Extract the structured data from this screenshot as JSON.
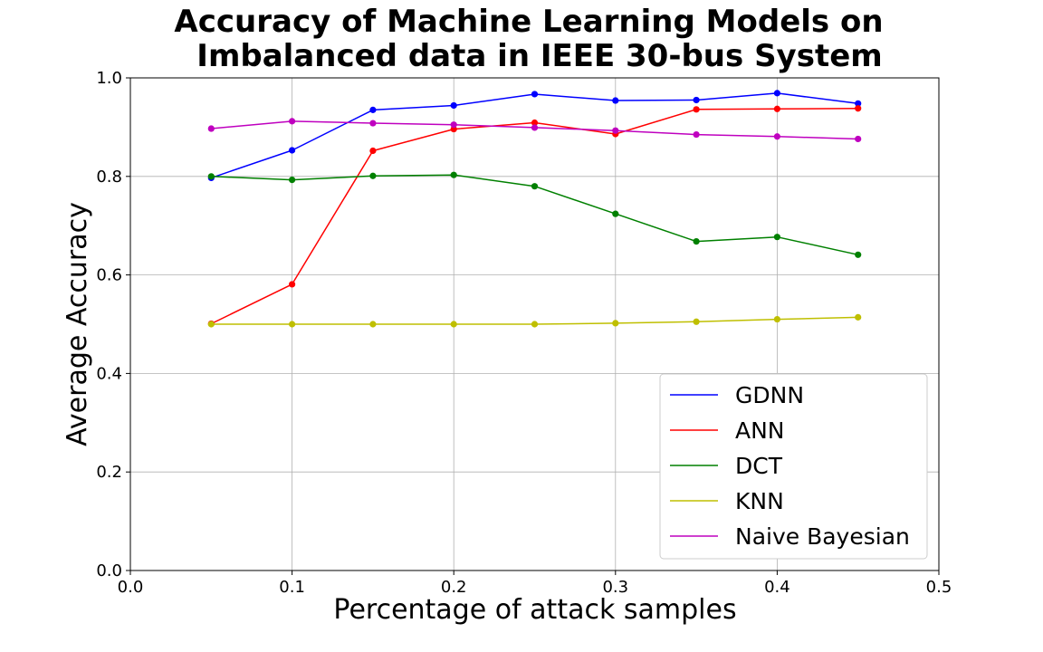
{
  "chart_data": {
    "type": "line",
    "title_lines": [
      "Accuracy of Machine Learning Models on",
      "Imbalanced data in IEEE 30-bus System"
    ],
    "xlabel": "Percentage of attack samples",
    "ylabel": "Average Accuracy",
    "xlim": [
      0.0,
      0.5
    ],
    "ylim": [
      0.0,
      1.0
    ],
    "xticks": [
      0.0,
      0.1,
      0.2,
      0.3,
      0.4,
      0.5
    ],
    "xtick_labels": [
      "0.0",
      "0.1",
      "0.2",
      "0.3",
      "0.4",
      "0.5"
    ],
    "yticks": [
      0.0,
      0.2,
      0.4,
      0.6,
      0.8,
      1.0
    ],
    "ytick_labels": [
      "0.0",
      "0.2",
      "0.4",
      "0.6",
      "0.8",
      "1.0"
    ],
    "grid": true,
    "legend_position": "lower-right",
    "x": [
      0.05,
      0.1,
      0.15,
      0.2,
      0.25,
      0.3,
      0.35,
      0.4,
      0.45
    ],
    "series": [
      {
        "name": "GDNN",
        "color": "#0000ff",
        "values": [
          0.797,
          0.853,
          0.935,
          0.944,
          0.967,
          0.954,
          0.955,
          0.969,
          0.948
        ]
      },
      {
        "name": "ANN",
        "color": "#ff0000",
        "values": [
          0.501,
          0.581,
          0.852,
          0.896,
          0.909,
          0.886,
          0.936,
          0.937,
          0.938
        ]
      },
      {
        "name": "DCT",
        "color": "#008000",
        "values": [
          0.8,
          0.793,
          0.801,
          0.803,
          0.78,
          0.724,
          0.668,
          0.677,
          0.641
        ]
      },
      {
        "name": "KNN",
        "color": "#bfbf00",
        "values": [
          0.5,
          0.5,
          0.5,
          0.5,
          0.5,
          0.502,
          0.505,
          0.51,
          0.514
        ]
      },
      {
        "name": "Naive Bayesian",
        "color": "#bf00bf",
        "values": [
          0.897,
          0.912,
          0.908,
          0.905,
          0.899,
          0.893,
          0.885,
          0.881,
          0.876
        ]
      }
    ]
  }
}
